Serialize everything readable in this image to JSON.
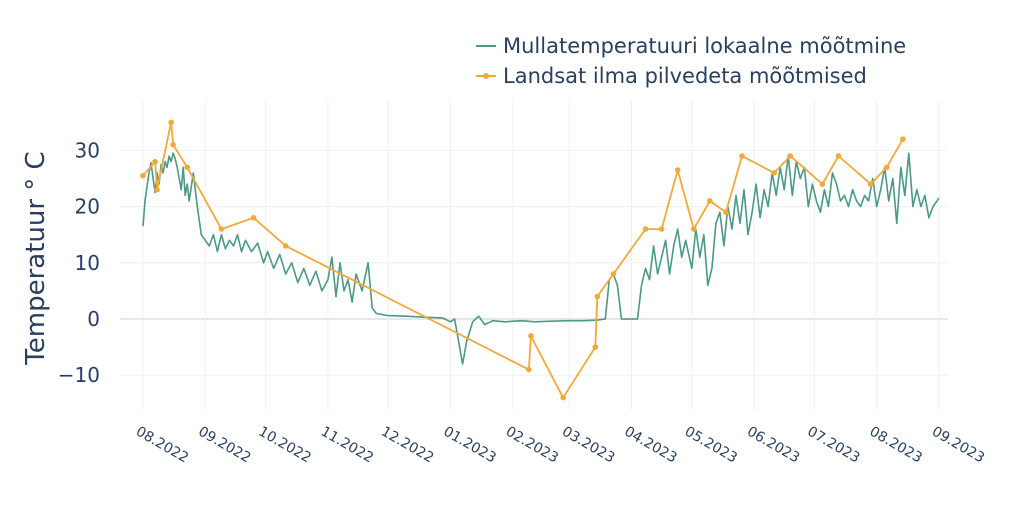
{
  "chart_data": {
    "type": "line",
    "ylabel": "Temperatuur ° C",
    "xlim": [
      "2022-08-01",
      "2023-09-01"
    ],
    "ylim": [
      -17,
      38
    ],
    "y_ticks": [
      -10,
      0,
      10,
      20,
      30
    ],
    "y_tick_labels": [
      "−10",
      "0",
      "10",
      "20",
      "30"
    ],
    "x_ticks": [
      "2022-08-01",
      "2022-09-01",
      "2022-10-01",
      "2022-11-01",
      "2022-12-01",
      "2023-01-01",
      "2023-02-01",
      "2023-03-01",
      "2023-04-01",
      "2023-05-01",
      "2023-06-01",
      "2023-07-01",
      "2023-08-01",
      "2023-09-01"
    ],
    "x_tick_labels": [
      "08.2022",
      "09.2022",
      "10.2022",
      "11.2022",
      "12.2022",
      "01.2023",
      "02.2023",
      "03.2023",
      "04.2023",
      "05.2023",
      "06.2023",
      "07.2023",
      "08.2023",
      "09.2023"
    ],
    "grid": true,
    "legend_position": "top-right",
    "series": [
      {
        "name": "Mullatemperatuuri lokaalne mõõtmine",
        "color": "#4a9a86",
        "mode": "line",
        "points": [
          [
            "2022-08-01",
            16.5
          ],
          [
            "2022-08-02",
            21
          ],
          [
            "2022-08-03",
            23.5
          ],
          [
            "2022-08-04",
            26
          ],
          [
            "2022-08-05",
            27.8
          ],
          [
            "2022-08-06",
            25
          ],
          [
            "2022-08-07",
            22.5
          ],
          [
            "2022-08-08",
            26
          ],
          [
            "2022-08-09",
            24
          ],
          [
            "2022-08-10",
            27.5
          ],
          [
            "2022-08-11",
            26
          ],
          [
            "2022-08-12",
            28
          ],
          [
            "2022-08-13",
            27
          ],
          [
            "2022-08-14",
            29
          ],
          [
            "2022-08-15",
            28
          ],
          [
            "2022-08-16",
            29.5
          ],
          [
            "2022-08-17",
            28.5
          ],
          [
            "2022-08-18",
            27
          ],
          [
            "2022-08-19",
            25
          ],
          [
            "2022-08-20",
            23
          ],
          [
            "2022-08-21",
            27
          ],
          [
            "2022-08-22",
            22
          ],
          [
            "2022-08-23",
            24
          ],
          [
            "2022-08-24",
            21
          ],
          [
            "2022-08-26",
            26
          ],
          [
            "2022-08-28",
            20
          ],
          [
            "2022-08-30",
            15
          ],
          [
            "2022-09-01",
            14
          ],
          [
            "2022-09-03",
            13
          ],
          [
            "2022-09-05",
            15
          ],
          [
            "2022-09-07",
            12
          ],
          [
            "2022-09-09",
            15
          ],
          [
            "2022-09-11",
            12.5
          ],
          [
            "2022-09-13",
            14
          ],
          [
            "2022-09-15",
            13
          ],
          [
            "2022-09-17",
            15
          ],
          [
            "2022-09-19",
            12
          ],
          [
            "2022-09-21",
            14
          ],
          [
            "2022-09-24",
            12
          ],
          [
            "2022-09-27",
            13.5
          ],
          [
            "2022-09-30",
            10
          ],
          [
            "2022-10-02",
            12
          ],
          [
            "2022-10-05",
            9
          ],
          [
            "2022-10-08",
            11.5
          ],
          [
            "2022-10-11",
            8
          ],
          [
            "2022-10-14",
            10
          ],
          [
            "2022-10-17",
            6.5
          ],
          [
            "2022-10-20",
            9
          ],
          [
            "2022-10-23",
            6
          ],
          [
            "2022-10-26",
            8.5
          ],
          [
            "2022-10-29",
            5
          ],
          [
            "2022-11-01",
            7
          ],
          [
            "2022-11-03",
            11
          ],
          [
            "2022-11-05",
            4
          ],
          [
            "2022-11-07",
            10
          ],
          [
            "2022-11-09",
            5
          ],
          [
            "2022-11-11",
            7
          ],
          [
            "2022-11-13",
            3
          ],
          [
            "2022-11-15",
            8
          ],
          [
            "2022-11-18",
            5
          ],
          [
            "2022-11-21",
            10
          ],
          [
            "2022-11-23",
            2
          ],
          [
            "2022-11-25",
            1
          ],
          [
            "2022-12-01",
            0.6
          ],
          [
            "2022-12-10",
            0.5
          ],
          [
            "2022-12-20",
            0.3
          ],
          [
            "2022-12-28",
            0.2
          ],
          [
            "2023-01-01",
            -0.5
          ],
          [
            "2023-01-03",
            0
          ],
          [
            "2023-01-05",
            -4
          ],
          [
            "2023-01-07",
            -8
          ],
          [
            "2023-01-09",
            -4
          ],
          [
            "2023-01-12",
            -0.5
          ],
          [
            "2023-01-15",
            0.5
          ],
          [
            "2023-01-18",
            -1
          ],
          [
            "2023-01-22",
            -0.3
          ],
          [
            "2023-01-28",
            -0.5
          ],
          [
            "2023-02-05",
            -0.3
          ],
          [
            "2023-02-12",
            -0.5
          ],
          [
            "2023-02-20",
            -0.4
          ],
          [
            "2023-03-01",
            -0.3
          ],
          [
            "2023-03-08",
            -0.3
          ],
          [
            "2023-03-15",
            -0.2
          ],
          [
            "2023-03-19",
            0
          ],
          [
            "2023-03-21",
            7
          ],
          [
            "2023-03-23",
            8
          ],
          [
            "2023-03-25",
            6
          ],
          [
            "2023-03-27",
            0
          ],
          [
            "2023-04-01",
            0
          ],
          [
            "2023-04-04",
            0
          ],
          [
            "2023-04-06",
            6
          ],
          [
            "2023-04-08",
            9
          ],
          [
            "2023-04-10",
            7
          ],
          [
            "2023-04-12",
            13
          ],
          [
            "2023-04-14",
            8
          ],
          [
            "2023-04-16",
            11
          ],
          [
            "2023-04-18",
            14
          ],
          [
            "2023-04-20",
            8
          ],
          [
            "2023-04-22",
            13
          ],
          [
            "2023-04-24",
            16
          ],
          [
            "2023-04-26",
            11
          ],
          [
            "2023-04-28",
            14
          ],
          [
            "2023-05-01",
            9
          ],
          [
            "2023-05-03",
            16
          ],
          [
            "2023-05-05",
            11
          ],
          [
            "2023-05-07",
            15
          ],
          [
            "2023-05-09",
            6
          ],
          [
            "2023-05-11",
            9
          ],
          [
            "2023-05-13",
            17
          ],
          [
            "2023-05-15",
            19
          ],
          [
            "2023-05-17",
            13
          ],
          [
            "2023-05-19",
            20
          ],
          [
            "2023-05-21",
            16
          ],
          [
            "2023-05-23",
            22
          ],
          [
            "2023-05-25",
            17
          ],
          [
            "2023-05-27",
            23
          ],
          [
            "2023-05-29",
            15
          ],
          [
            "2023-05-31",
            19
          ],
          [
            "2023-06-02",
            24
          ],
          [
            "2023-06-04",
            18
          ],
          [
            "2023-06-06",
            23
          ],
          [
            "2023-06-08",
            20
          ],
          [
            "2023-06-10",
            26
          ],
          [
            "2023-06-12",
            22
          ],
          [
            "2023-06-14",
            27
          ],
          [
            "2023-06-16",
            23
          ],
          [
            "2023-06-18",
            29
          ],
          [
            "2023-06-20",
            22
          ],
          [
            "2023-06-22",
            28
          ],
          [
            "2023-06-24",
            25
          ],
          [
            "2023-06-26",
            27
          ],
          [
            "2023-06-28",
            20
          ],
          [
            "2023-06-30",
            24
          ],
          [
            "2023-07-02",
            21
          ],
          [
            "2023-07-04",
            19
          ],
          [
            "2023-07-06",
            23
          ],
          [
            "2023-07-08",
            20
          ],
          [
            "2023-07-10",
            26
          ],
          [
            "2023-07-12",
            24
          ],
          [
            "2023-07-14",
            21
          ],
          [
            "2023-07-16",
            22
          ],
          [
            "2023-07-18",
            20
          ],
          [
            "2023-07-20",
            23
          ],
          [
            "2023-07-22",
            21
          ],
          [
            "2023-07-24",
            20
          ],
          [
            "2023-07-26",
            22
          ],
          [
            "2023-07-28",
            21
          ],
          [
            "2023-07-30",
            25
          ],
          [
            "2023-08-01",
            20
          ],
          [
            "2023-08-03",
            23
          ],
          [
            "2023-08-05",
            27
          ],
          [
            "2023-08-07",
            21
          ],
          [
            "2023-08-09",
            25
          ],
          [
            "2023-08-11",
            17
          ],
          [
            "2023-08-13",
            27
          ],
          [
            "2023-08-15",
            22
          ],
          [
            "2023-08-17",
            29.5
          ],
          [
            "2023-08-19",
            20
          ],
          [
            "2023-08-21",
            23
          ],
          [
            "2023-08-23",
            20
          ],
          [
            "2023-08-25",
            22
          ],
          [
            "2023-08-27",
            18
          ],
          [
            "2023-08-29",
            20
          ],
          [
            "2023-09-01",
            21.5
          ]
        ]
      },
      {
        "name": "Landsat ilma pilvedeta mõõtmised",
        "color": "#f2a93b",
        "mode": "line+markers",
        "points": [
          [
            "2022-08-01",
            25.5
          ],
          [
            "2022-08-07",
            28
          ],
          [
            "2022-08-08",
            23
          ],
          [
            "2022-08-15",
            35
          ],
          [
            "2022-08-16",
            31
          ],
          [
            "2022-08-23",
            27
          ],
          [
            "2022-09-09",
            16
          ],
          [
            "2022-09-25",
            18
          ],
          [
            "2022-10-11",
            13
          ],
          [
            "2023-02-09",
            -9
          ],
          [
            "2023-02-10",
            -3
          ],
          [
            "2023-02-26",
            -14
          ],
          [
            "2023-03-14",
            -5
          ],
          [
            "2023-03-15",
            4
          ],
          [
            "2023-03-23",
            8
          ],
          [
            "2023-04-08",
            16
          ],
          [
            "2023-04-16",
            16
          ],
          [
            "2023-04-24",
            26.5
          ],
          [
            "2023-05-02",
            16
          ],
          [
            "2023-05-10",
            21
          ],
          [
            "2023-05-18",
            19
          ],
          [
            "2023-05-26",
            29
          ],
          [
            "2023-06-11",
            26
          ],
          [
            "2023-06-19",
            29
          ],
          [
            "2023-07-05",
            24
          ],
          [
            "2023-07-13",
            29
          ],
          [
            "2023-07-29",
            24
          ],
          [
            "2023-08-06",
            27
          ],
          [
            "2023-08-14",
            32
          ]
        ]
      }
    ]
  }
}
